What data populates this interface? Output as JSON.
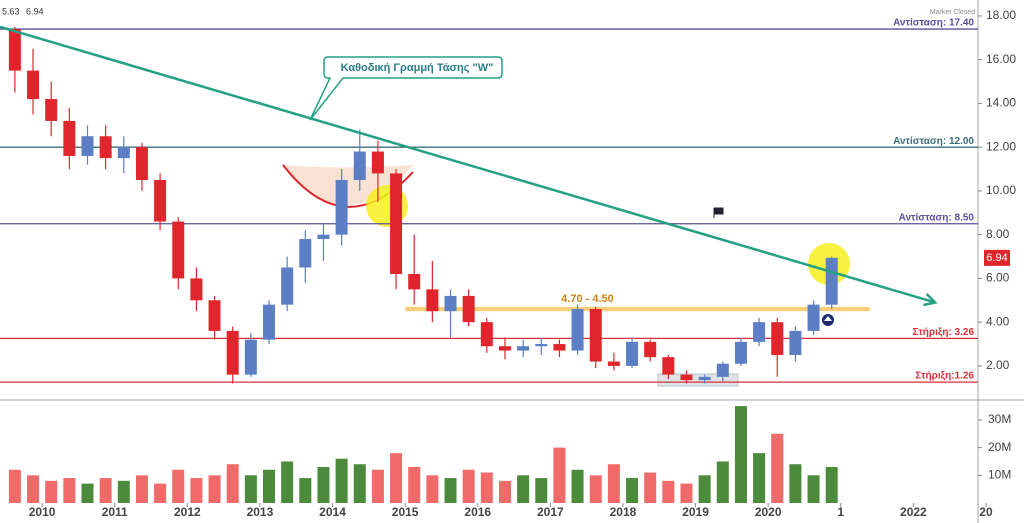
{
  "chart_data": {
    "type": "candlestick",
    "header": {
      "prev": "5.63",
      "last": "6.94",
      "status": "Market Closed"
    },
    "up_color": "#5b7ec4",
    "down_color": "#e0262c",
    "x": [
      2009.5,
      2009.75,
      2010,
      2010.25,
      2010.5,
      2010.75,
      2011,
      2011.25,
      2011.5,
      2011.75,
      2012,
      2012.25,
      2012.5,
      2012.75,
      2013,
      2013.25,
      2013.5,
      2013.75,
      2014,
      2014.25,
      2014.5,
      2014.75,
      2015,
      2015.25,
      2015.5,
      2015.75,
      2016,
      2016.25,
      2016.5,
      2016.75,
      2017,
      2017.25,
      2017.5,
      2017.75,
      2018,
      2018.25,
      2018.5,
      2018.75,
      2019,
      2019.25,
      2019.5,
      2019.75,
      2020,
      2020.25,
      2020.5,
      2020.75
    ],
    "ohlc": [
      [
        17.4,
        17.5,
        14.5,
        15.5
      ],
      [
        15.5,
        16.5,
        13.5,
        14.2
      ],
      [
        14.2,
        15,
        12.5,
        13.2
      ],
      [
        13.2,
        13.8,
        11,
        11.6
      ],
      [
        11.6,
        13,
        11.2,
        12.5
      ],
      [
        12.5,
        13,
        11,
        11.5
      ],
      [
        11.5,
        12.5,
        10.8,
        12
      ],
      [
        12,
        12.2,
        10,
        10.5
      ],
      [
        10.5,
        10.8,
        8.2,
        8.6
      ],
      [
        8.6,
        8.8,
        5.5,
        6
      ],
      [
        6,
        6.5,
        4.5,
        5
      ],
      [
        5,
        5.2,
        3.2,
        3.6
      ],
      [
        3.6,
        3.8,
        1.2,
        1.6
      ],
      [
        1.6,
        3.5,
        1.5,
        3.2
      ],
      [
        3.2,
        5,
        3,
        4.8
      ],
      [
        4.8,
        7,
        4.5,
        6.5
      ],
      [
        6.5,
        8.2,
        5.8,
        7.8
      ],
      [
        7.8,
        8.5,
        6.8,
        8
      ],
      [
        8,
        11,
        7.5,
        10.5
      ],
      [
        10.5,
        12.8,
        10,
        11.8
      ],
      [
        11.8,
        12.3,
        9.5,
        10.8
      ],
      [
        10.8,
        11,
        5.5,
        6.2
      ],
      [
        6.2,
        8,
        4.8,
        5.5
      ],
      [
        5.5,
        6.8,
        4,
        4.5
      ],
      [
        4.5,
        5.5,
        3.3,
        5.2
      ],
      [
        5.2,
        5.5,
        3.8,
        4
      ],
      [
        4,
        4.2,
        2.6,
        2.9
      ],
      [
        2.9,
        3.3,
        2.3,
        2.7
      ],
      [
        2.7,
        3.2,
        2.4,
        2.9
      ],
      [
        2.9,
        3.3,
        2.5,
        3
      ],
      [
        3,
        3.2,
        2.4,
        2.7
      ],
      [
        2.7,
        4.8,
        2.5,
        4.6
      ],
      [
        4.6,
        4.7,
        1.9,
        2.2
      ],
      [
        2.2,
        2.6,
        1.8,
        2
      ],
      [
        2,
        3.3,
        1.9,
        3.1
      ],
      [
        3.1,
        3.2,
        2.2,
        2.4
      ],
      [
        2.4,
        2.5,
        1.4,
        1.6
      ],
      [
        1.6,
        1.8,
        1.2,
        1.35
      ],
      [
        1.35,
        1.6,
        1.2,
        1.5
      ],
      [
        1.5,
        2.2,
        1.3,
        2.1
      ],
      [
        2.1,
        3.3,
        2,
        3.1
      ],
      [
        3.1,
        4.2,
        2.9,
        4
      ],
      [
        4,
        4.2,
        1.5,
        2.5
      ],
      [
        2.5,
        3.8,
        2.2,
        3.6
      ],
      [
        3.6,
        5,
        3.4,
        4.8
      ],
      [
        4.8,
        7,
        4.6,
        6.94
      ]
    ],
    "xlim": [
      2009.42,
      2022.89
    ],
    "xticks": [
      2010,
      2011,
      2012,
      2013,
      2014,
      2015,
      2016,
      2017,
      2018,
      2019,
      2020,
      {
        "value": 2021,
        "label": "1"
      },
      2022,
      {
        "value": 2023,
        "label": "20"
      }
    ],
    "ylim": [
      0.67,
      18.5
    ],
    "yticks": [
      {
        "value": 2,
        "label": "2.00"
      },
      {
        "value": 4,
        "label": "4.00"
      },
      {
        "value": 6,
        "label": "6.00"
      },
      {
        "value": 8,
        "label": "8.00"
      },
      {
        "value": 10,
        "label": "10.00"
      },
      {
        "value": 12,
        "label": "12.00"
      },
      {
        "value": 14,
        "label": "14.00"
      },
      {
        "value": 16,
        "label": "16.00"
      },
      {
        "value": 18,
        "label": "18.00"
      }
    ],
    "levels": [
      {
        "value": 17.4,
        "label": "Αντίσταση: 17.40",
        "color": "#5a4f9e"
      },
      {
        "value": 12,
        "label": "Αντίσταση: 12.00",
        "color": "#3d6f7a"
      },
      {
        "value": 8.5,
        "label": "Αντίσταση: 8.50",
        "color": "#5a4f9e"
      },
      {
        "value": 3.26,
        "label": "Στήριξη: 3.26",
        "color": "#d9303a"
      },
      {
        "value": 1.26,
        "label": "Στήριξη:1.26",
        "color": "#d9303a"
      }
    ],
    "band": {
      "x": [
        2015,
        2021.4
      ],
      "y": [
        4.5,
        4.7
      ],
      "label": "4.70 - 4.50",
      "color": "#f5b942"
    },
    "trendline": {
      "x": [
        2009.42,
        2022.3
      ],
      "y": [
        17.5,
        4.9
      ],
      "label": "Καθοδική Γραμμή Τάσης  \"W\"",
      "color": "#23a085"
    },
    "volume": {
      "values": [
        12,
        10,
        8,
        9,
        7,
        9,
        8,
        10,
        7,
        12,
        9,
        10,
        14,
        10,
        12,
        15,
        9,
        13,
        16,
        14,
        12,
        18,
        13,
        10,
        9,
        12,
        11,
        8,
        10,
        9,
        20,
        12,
        10,
        14,
        9,
        11,
        8,
        7,
        10,
        15,
        35,
        18,
        25,
        14,
        10,
        13
      ],
      "up_color": "#4c8a3c",
      "down_color": "#f06a6a",
      "ylim": [
        0,
        34.3
      ],
      "yticks": [
        {
          "value": 10,
          "label": "10M"
        },
        {
          "value": 20,
          "label": "20M"
        },
        {
          "value": 30,
          "label": "30M"
        }
      ]
    }
  }
}
